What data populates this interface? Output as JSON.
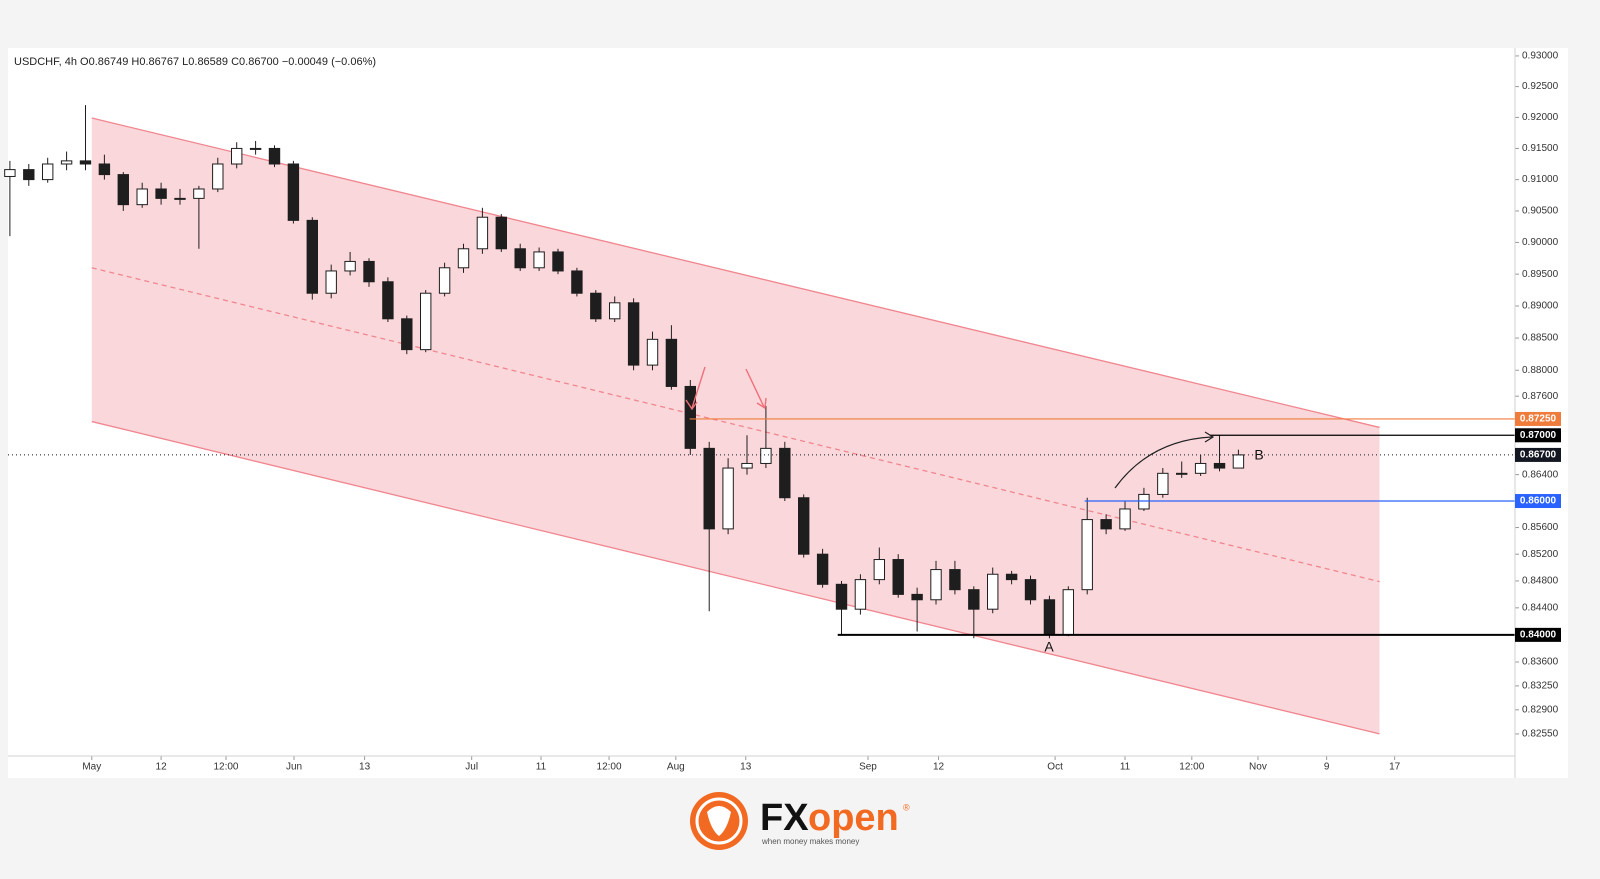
{
  "chart_data": {
    "type": "candlestick",
    "title": "USDCHF, 4h  O0.86749  H0.86767  L0.86589  C0.86700  −0.00049 (−0.06%)",
    "log_scale": true,
    "grid": false,
    "up_color": "#ffffff",
    "down_color": "#1e1e1e",
    "xlim": [
      -13.3,
      225.9
    ],
    "ylim": [
      0.8223,
      0.9313
    ],
    "xticks": [
      {
        "value": 0,
        "label": "May"
      },
      {
        "value": 11,
        "label": "12"
      },
      {
        "value": 21.3,
        "label": "12:00"
      },
      {
        "value": 32.1,
        "label": "Jun"
      },
      {
        "value": 43.3,
        "label": "13"
      },
      {
        "value": 60.3,
        "label": "Jul"
      },
      {
        "value": 71.3,
        "label": "11"
      },
      {
        "value": 82.1,
        "label": "12:00"
      },
      {
        "value": 92.7,
        "label": "Aug"
      },
      {
        "value": 103.8,
        "label": "13"
      },
      {
        "value": 123.2,
        "label": "Sep"
      },
      {
        "value": 134.4,
        "label": "12"
      },
      {
        "value": 152.9,
        "label": "Oct"
      },
      {
        "value": 164,
        "label": "11"
      },
      {
        "value": 174.6,
        "label": "12:00"
      },
      {
        "value": 185.1,
        "label": "Nov"
      },
      {
        "value": 196,
        "label": "9"
      },
      {
        "value": 206.8,
        "label": "17"
      }
    ],
    "yticks": [
      {
        "value": 0.93,
        "label": "0.93000"
      },
      {
        "value": 0.925,
        "label": "0.92500"
      },
      {
        "value": 0.92,
        "label": "0.92000"
      },
      {
        "value": 0.915,
        "label": "0.91500"
      },
      {
        "value": 0.91,
        "label": "0.91000"
      },
      {
        "value": 0.905,
        "label": "0.90500"
      },
      {
        "value": 0.9,
        "label": "0.90000"
      },
      {
        "value": 0.895,
        "label": "0.89500"
      },
      {
        "value": 0.89,
        "label": "0.89000"
      },
      {
        "value": 0.885,
        "label": "0.88500"
      },
      {
        "value": 0.88,
        "label": "0.88000"
      },
      {
        "value": 0.876,
        "label": "0.87600"
      },
      {
        "value": 0.864,
        "label": "0.86400"
      },
      {
        "value": 0.856,
        "label": "0.85600"
      },
      {
        "value": 0.852,
        "label": "0.85200"
      },
      {
        "value": 0.848,
        "label": "0.84800"
      },
      {
        "value": 0.844,
        "label": "0.84400"
      },
      {
        "value": 0.836,
        "label": "0.83600"
      },
      {
        "value": 0.8325,
        "label": "0.83250"
      },
      {
        "value": 0.829,
        "label": "0.82900"
      },
      {
        "value": 0.8255,
        "label": "0.82550"
      }
    ],
    "x": [
      -13,
      -10,
      -7,
      -4,
      -1,
      2,
      5,
      8,
      11,
      14,
      17,
      20,
      23,
      26,
      29,
      32,
      35,
      38,
      41,
      44,
      47,
      50,
      53,
      56,
      59,
      62,
      65,
      68,
      71,
      74,
      77,
      80,
      83,
      86,
      89,
      92,
      95,
      98,
      101,
      104,
      107,
      110,
      113,
      116,
      119,
      122,
      125,
      128,
      131,
      134,
      137,
      140,
      143,
      146,
      149,
      152,
      155,
      158,
      161,
      164,
      167,
      170,
      173,
      176,
      179,
      182
    ],
    "open": [
      0.9105,
      0.9116,
      0.91,
      0.9125,
      0.913,
      0.9125,
      0.9108,
      0.906,
      0.9085,
      0.907,
      0.907,
      0.9085,
      0.9125,
      0.915,
      0.915,
      0.9125,
      0.9035,
      0.892,
      0.8955,
      0.897,
      0.8938,
      0.888,
      0.8832,
      0.892,
      0.896,
      0.899,
      0.904,
      0.899,
      0.896,
      0.8985,
      0.8955,
      0.892,
      0.888,
      0.8905,
      0.8808,
      0.8848,
      0.8775,
      0.868,
      0.8558,
      0.865,
      0.8657,
      0.868,
      0.8605,
      0.852,
      0.8475,
      0.8438,
      0.8482,
      0.8512,
      0.846,
      0.8452,
      0.8497,
      0.8467,
      0.8438,
      0.849,
      0.8482,
      0.8452,
      0.84,
      0.8467,
      0.8572,
      0.8558,
      0.8588,
      0.861,
      0.8642,
      0.8642,
      0.8657,
      0.865
    ],
    "high": [
      0.913,
      0.9125,
      0.9135,
      0.9145,
      0.922,
      0.914,
      0.9112,
      0.9095,
      0.9095,
      0.9085,
      0.909,
      0.9135,
      0.916,
      0.9162,
      0.9155,
      0.913,
      0.904,
      0.8965,
      0.8985,
      0.8975,
      0.8945,
      0.8885,
      0.8925,
      0.8968,
      0.8998,
      0.9055,
      0.9045,
      0.8998,
      0.8992,
      0.899,
      0.896,
      0.8925,
      0.8915,
      0.8912,
      0.886,
      0.887,
      0.8785,
      0.869,
      0.8665,
      0.87,
      0.8745,
      0.869,
      0.861,
      0.8528,
      0.848,
      0.849,
      0.853,
      0.852,
      0.847,
      0.851,
      0.851,
      0.8472,
      0.85,
      0.8495,
      0.8488,
      0.8458,
      0.8472,
      0.8605,
      0.858,
      0.86,
      0.862,
      0.865,
      0.866,
      0.867,
      0.87,
      0.8678
    ],
    "low": [
      0.901,
      0.909,
      0.9095,
      0.9115,
      0.9115,
      0.91,
      0.905,
      0.9055,
      0.906,
      0.906,
      0.899,
      0.908,
      0.9118,
      0.914,
      0.912,
      0.903,
      0.891,
      0.8912,
      0.8948,
      0.893,
      0.8875,
      0.8825,
      0.8828,
      0.8915,
      0.8952,
      0.8982,
      0.8985,
      0.8955,
      0.8955,
      0.895,
      0.8915,
      0.8875,
      0.8875,
      0.88,
      0.88,
      0.877,
      0.867,
      0.8435,
      0.855,
      0.864,
      0.865,
      0.86,
      0.8515,
      0.847,
      0.84,
      0.843,
      0.8475,
      0.8455,
      0.8405,
      0.8445,
      0.846,
      0.8395,
      0.8432,
      0.8475,
      0.8445,
      0.8395,
      0.8398,
      0.846,
      0.855,
      0.8555,
      0.8585,
      0.8605,
      0.8635,
      0.8638,
      0.8645,
      0.8659
    ],
    "close": [
      0.9116,
      0.91,
      0.9125,
      0.913,
      0.9125,
      0.9108,
      0.906,
      0.9085,
      0.907,
      0.907,
      0.9085,
      0.9125,
      0.915,
      0.915,
      0.9125,
      0.9035,
      0.892,
      0.8955,
      0.897,
      0.8938,
      0.888,
      0.8832,
      0.892,
      0.896,
      0.899,
      0.904,
      0.899,
      0.896,
      0.8985,
      0.8955,
      0.892,
      0.888,
      0.8905,
      0.8808,
      0.8848,
      0.8775,
      0.868,
      0.8558,
      0.865,
      0.8657,
      0.868,
      0.8605,
      0.852,
      0.8475,
      0.8438,
      0.8482,
      0.8512,
      0.846,
      0.8452,
      0.8497,
      0.8467,
      0.8438,
      0.849,
      0.8482,
      0.8452,
      0.84,
      0.8467,
      0.8572,
      0.8558,
      0.8588,
      0.861,
      0.8642,
      0.8642,
      0.8657,
      0.865,
      0.867
    ],
    "channel": {
      "color": "#f0868f",
      "x": [
        0,
        204.4
      ],
      "upper": [
        0.9199,
        0.8712
      ],
      "middle": [
        0.896,
        0.8479
      ],
      "lower": [
        0.8721,
        0.8255
      ]
    },
    "levels": [
      {
        "value": 0.8725,
        "label": "0.87250",
        "color": "#f07c3c",
        "x_start": 94.9
      },
      {
        "value": 0.87,
        "label": "0.87000",
        "color": "#000000",
        "x_start": 177.5
      },
      {
        "value": 0.867,
        "label": "0.86700",
        "color": "#131722",
        "style": "dotted"
      },
      {
        "value": 0.86,
        "label": "0.86000",
        "color": "#2962ff",
        "x_start": 157.6
      },
      {
        "value": 0.84,
        "label": "0.84000",
        "color": "#000000",
        "x_start": 118.4
      }
    ],
    "annotations": [
      "A",
      "B"
    ]
  },
  "logo": {
    "brand_left": "FX",
    "brand_right": "open",
    "registered": "®",
    "tagline": "when money makes money"
  }
}
